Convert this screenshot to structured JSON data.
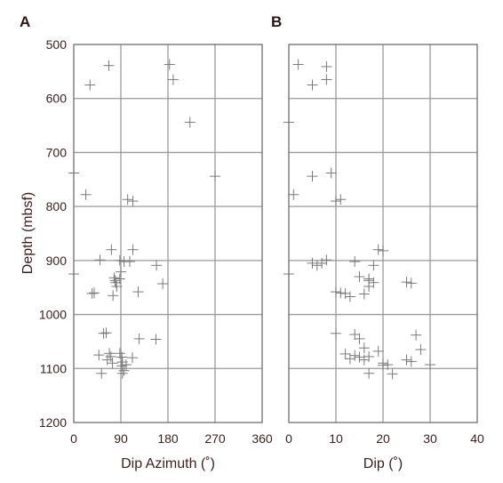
{
  "chart_data": [
    {
      "type": "scatter",
      "panel_label": "A",
      "xlabel": "Dip Azimuth (˚)",
      "ylabel": "Depth (mbsf)",
      "xlim": [
        0,
        360
      ],
      "ylim": [
        1200,
        500
      ],
      "y_inverted": true,
      "xticks": [
        "0",
        "90",
        "180",
        "270",
        "360"
      ],
      "yticks": [
        "500",
        "600",
        "700",
        "800",
        "900",
        "1000",
        "1100",
        "1200"
      ],
      "grid": true,
      "marker": "plus",
      "marker_color": "#7a7a7a",
      "points": [
        [
          67,
          539
        ],
        [
          31,
          575
        ],
        [
          183,
          537
        ],
        [
          190,
          565
        ],
        [
          222,
          644
        ],
        [
          0,
          738
        ],
        [
          23,
          778
        ],
        [
          270,
          744
        ],
        [
          103,
          787
        ],
        [
          113,
          790
        ],
        [
          72,
          880
        ],
        [
          113,
          880
        ],
        [
          50,
          899
        ],
        [
          88,
          900
        ],
        [
          96,
          902
        ],
        [
          107,
          902
        ],
        [
          158,
          909
        ],
        [
          90,
          921
        ],
        [
          0,
          925
        ],
        [
          77,
          932
        ],
        [
          88,
          934
        ],
        [
          79,
          937
        ],
        [
          80,
          941
        ],
        [
          170,
          943
        ],
        [
          82,
          948
        ],
        [
          39,
          960
        ],
        [
          35,
          961
        ],
        [
          123,
          958
        ],
        [
          75,
          965
        ],
        [
          57,
          1035
        ],
        [
          62,
          1034
        ],
        [
          125,
          1045
        ],
        [
          157,
          1046
        ],
        [
          48,
          1075
        ],
        [
          68,
          1072
        ],
        [
          71,
          1078
        ],
        [
          88,
          1072
        ],
        [
          64,
          1084
        ],
        [
          92,
          1079
        ],
        [
          112,
          1080
        ],
        [
          93,
          1088
        ],
        [
          74,
          1090
        ],
        [
          92,
          1095
        ],
        [
          100,
          1093
        ],
        [
          96,
          1104
        ],
        [
          53,
          1109
        ],
        [
          93,
          1109
        ]
      ]
    },
    {
      "type": "scatter",
      "panel_label": "B",
      "xlabel": "Dip (˚)",
      "ylabel": "",
      "xlim": [
        0,
        40
      ],
      "ylim": [
        1200,
        500
      ],
      "y_inverted": true,
      "xticks": [
        "0",
        "10",
        "20",
        "30",
        "40"
      ],
      "yticks": [
        "500",
        "600",
        "700",
        "800",
        "900",
        "1000",
        "1100",
        "1200"
      ],
      "grid": true,
      "marker": "plus",
      "marker_color": "#7a7a7a",
      "points": [
        [
          2,
          537
        ],
        [
          8,
          541
        ],
        [
          5,
          575
        ],
        [
          8,
          565
        ],
        [
          0,
          644
        ],
        [
          9,
          738
        ],
        [
          5,
          744
        ],
        [
          1,
          778
        ],
        [
          11,
          787
        ],
        [
          10,
          790
        ],
        [
          19,
          880
        ],
        [
          20,
          882
        ],
        [
          8,
          899
        ],
        [
          5,
          905
        ],
        [
          14,
          902
        ],
        [
          7,
          905
        ],
        [
          6,
          909
        ],
        [
          18,
          909
        ],
        [
          0,
          925
        ],
        [
          15,
          930
        ],
        [
          17,
          934
        ],
        [
          17,
          937
        ],
        [
          18,
          941
        ],
        [
          25,
          940
        ],
        [
          26,
          942
        ],
        [
          17,
          948
        ],
        [
          10,
          958
        ],
        [
          11,
          960
        ],
        [
          12,
          961
        ],
        [
          16,
          962
        ],
        [
          13,
          967
        ],
        [
          10,
          1035
        ],
        [
          14,
          1037
        ],
        [
          15,
          1045
        ],
        [
          27,
          1038
        ],
        [
          16,
          1062
        ],
        [
          28,
          1065
        ],
        [
          19,
          1068
        ],
        [
          12,
          1073
        ],
        [
          14,
          1076
        ],
        [
          15,
          1079
        ],
        [
          17,
          1078
        ],
        [
          13,
          1082
        ],
        [
          16,
          1084
        ],
        [
          25,
          1084
        ],
        [
          26,
          1087
        ],
        [
          20,
          1090
        ],
        [
          21,
          1093
        ],
        [
          20,
          1094
        ],
        [
          30,
          1093
        ],
        [
          17,
          1109
        ],
        [
          22,
          1110
        ]
      ]
    }
  ]
}
